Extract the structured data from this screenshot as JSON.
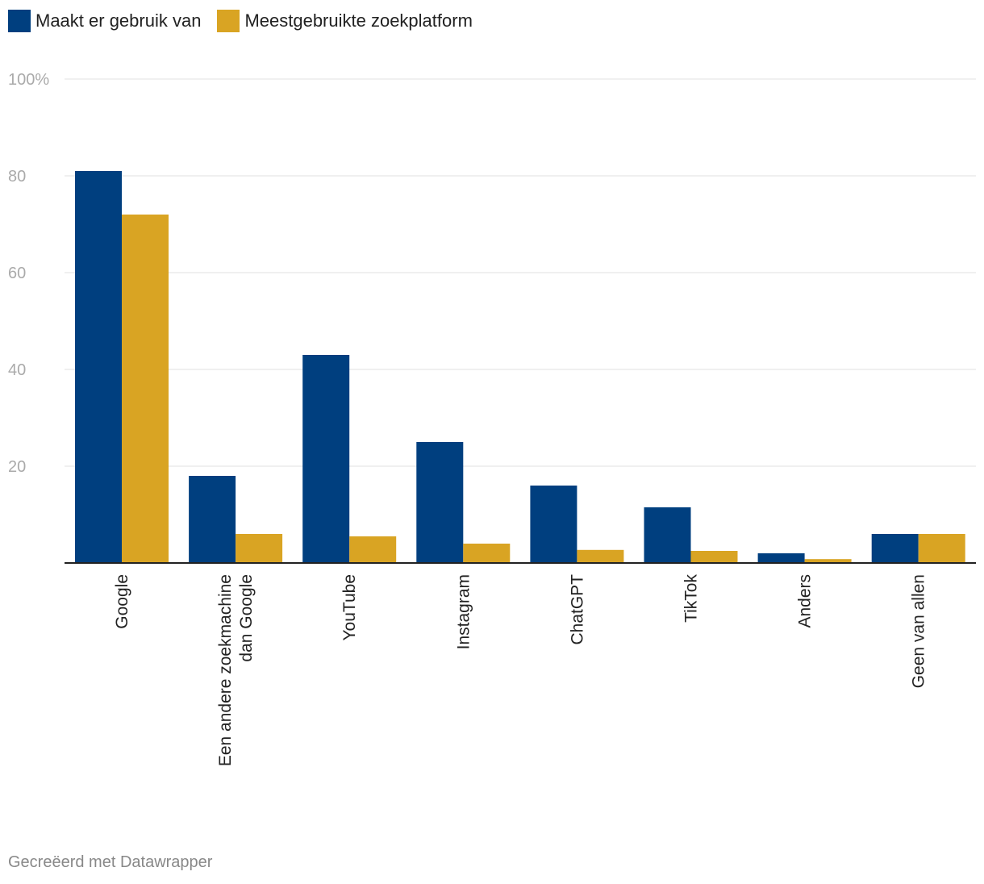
{
  "chart_data": {
    "type": "bar",
    "title": "",
    "xlabel": "",
    "ylabel": "",
    "ylim": [
      0,
      100
    ],
    "yticks": [
      {
        "value": 0,
        "label": ""
      },
      {
        "value": 20,
        "label": "20"
      },
      {
        "value": 40,
        "label": "40"
      },
      {
        "value": 60,
        "label": "60"
      },
      {
        "value": 80,
        "label": "80"
      },
      {
        "value": 100,
        "label": "100%"
      }
    ],
    "grid": true,
    "legend_position": "top-left",
    "categories": [
      [
        "Google"
      ],
      [
        "Een andere zoekmachine",
        "dan Google"
      ],
      [
        "YouTube"
      ],
      [
        "Instagram"
      ],
      [
        "ChatGPT"
      ],
      [
        "TikTok"
      ],
      [
        "Anders"
      ],
      [
        "Geen van allen"
      ]
    ],
    "series": [
      {
        "name": "Maakt er gebruik van",
        "color": "#003f7f",
        "values": [
          81,
          18,
          43,
          25,
          16,
          11.5,
          2,
          6
        ]
      },
      {
        "name": "Meestgebruikte zoekplatform",
        "color": "#d9a423",
        "values": [
          72,
          6,
          5.5,
          4,
          2.7,
          2.5,
          0.8,
          6
        ]
      }
    ]
  },
  "footer": "Gecreëerd met Datawrapper"
}
